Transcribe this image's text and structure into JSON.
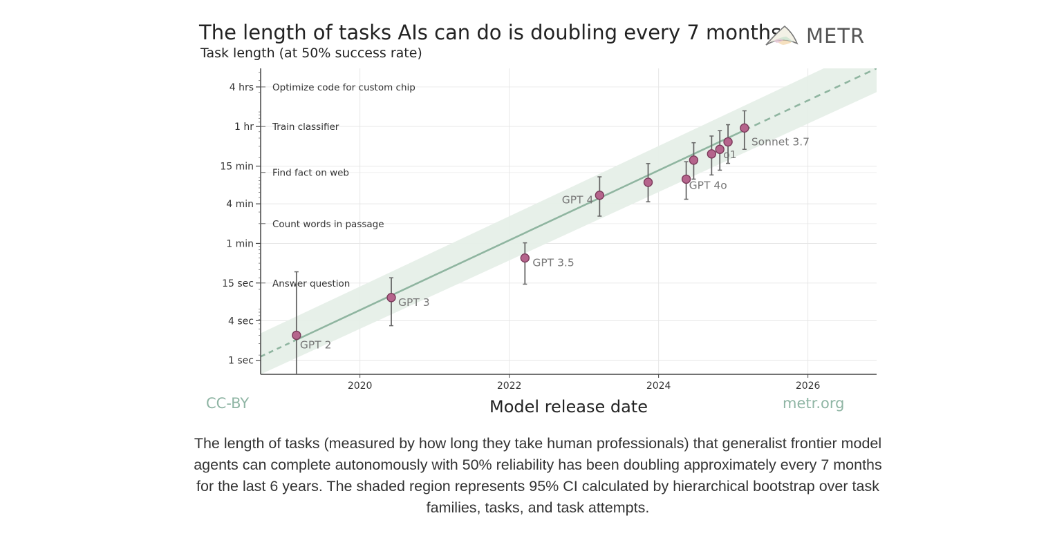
{
  "figure": {
    "title": "The length of tasks AIs can do is doubling every 7 months",
    "brand": "METR",
    "credit_left": "CC-BY",
    "credit_right": "metr.org"
  },
  "caption": "The length of tasks (measured by how long they take human professionals) that generalist frontier model agents can complete autonomously with 50% reliability has been doubling approximately every 7 months for the last 6 years. The shaded region represents 95% CI calculated by hierarchical bootstrap over task families, tasks, and task attempts.",
  "colors": {
    "point": "#b5648c",
    "point_edge": "#7a3a5a",
    "trend": "#8fb5a0",
    "band": "#e6efe8",
    "grid": "#e6e6e6",
    "credit": "#8fb5a4"
  },
  "chart_data": {
    "type": "scatter",
    "title": "The length of tasks AIs can do is doubling every 7 months",
    "ylabel": "Task length (at 50% success rate)",
    "xlabel": "Model release date",
    "y_scale": "log",
    "y_unit": "minutes",
    "xlim": [
      2018.67,
      2026.92
    ],
    "ylim_minutes": [
      0.0102,
      460
    ],
    "grid": true,
    "x_ticks": [
      {
        "value": 2020,
        "label": "2020"
      },
      {
        "value": 2022,
        "label": "2022"
      },
      {
        "value": 2024,
        "label": "2024"
      },
      {
        "value": 2026,
        "label": "2026"
      }
    ],
    "y_ticks": [
      {
        "value": 0.01667,
        "label": "1 sec"
      },
      {
        "value": 0.06667,
        "label": "4 sec"
      },
      {
        "value": 0.25,
        "label": "15 sec"
      },
      {
        "value": 1,
        "label": "1 min"
      },
      {
        "value": 4,
        "label": "4 min"
      },
      {
        "value": 15,
        "label": "15 min"
      },
      {
        "value": 60,
        "label": "1 hr"
      },
      {
        "value": 240,
        "label": "4 hrs"
      }
    ],
    "task_annotations": [
      {
        "label": "Optimize code for custom chip",
        "value": 240
      },
      {
        "label": "Train classifier",
        "value": 60
      },
      {
        "label": "Find fact on web",
        "value": 12
      },
      {
        "label": "Count words in passage",
        "value": 2
      },
      {
        "label": "Answer question",
        "value": 0.25
      }
    ],
    "series": [
      {
        "points": [
          {
            "x": 2019.15,
            "y": 0.04,
            "y_low": 0.0,
            "y_high": 0.37,
            "label": "GPT 2"
          },
          {
            "x": 2020.42,
            "y": 0.15,
            "y_low": 0.056,
            "y_high": 0.3,
            "label": "GPT 3"
          },
          {
            "x": 2022.21,
            "y": 0.6,
            "y_low": 0.24,
            "y_high": 1.02,
            "label": "GPT 3.5"
          },
          {
            "x": 2023.21,
            "y": 5.4,
            "y_low": 2.6,
            "y_high": 10.3,
            "label": "GPT 4"
          },
          {
            "x": 2023.86,
            "y": 8.5,
            "y_low": 4.3,
            "y_high": 16.4
          },
          {
            "x": 2024.37,
            "y": 9.5,
            "y_low": 4.7,
            "y_high": 17.5,
            "label": "GPT 4o"
          },
          {
            "x": 2024.47,
            "y": 18.5,
            "y_low": 9.5,
            "y_high": 34
          },
          {
            "x": 2024.71,
            "y": 23,
            "y_low": 11,
            "y_high": 43
          },
          {
            "x": 2024.82,
            "y": 27,
            "y_low": 13,
            "y_high": 52,
            "label": "o1"
          },
          {
            "x": 2024.93,
            "y": 35,
            "y_low": 16.5,
            "y_high": 64
          },
          {
            "x": 2025.15,
            "y": 57,
            "y_low": 27,
            "y_high": 104,
            "label": "Sonnet 3.7"
          }
        ]
      }
    ],
    "trend": {
      "style": "solid over data range, dashed extrapolation",
      "line": [
        {
          "x": 2018.67,
          "y": 0.019
        },
        {
          "x": 2026.92,
          "y": 460
        }
      ],
      "ci_band": [
        {
          "x": 2018.67,
          "y_low": 0.0085,
          "y_high": 0.043
        },
        {
          "x": 2026.92,
          "y_low": 200,
          "y_high": 1100
        }
      ]
    }
  }
}
